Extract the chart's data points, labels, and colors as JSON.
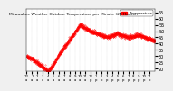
{
  "title": "Milwaukee Weather Outdoor Temperature per Minute (24 Hours)",
  "line_color": "#ff0000",
  "bg_color": "#f0f0f0",
  "plot_bg": "#ffffff",
  "legend_label": "Temperature",
  "legend_color": "#ff0000",
  "yticks": [
    20,
    25,
    30,
    35,
    40,
    45,
    50,
    55,
    60,
    65
  ],
  "ylim": [
    18,
    68
  ],
  "num_points": 1440,
  "seed": 42
}
